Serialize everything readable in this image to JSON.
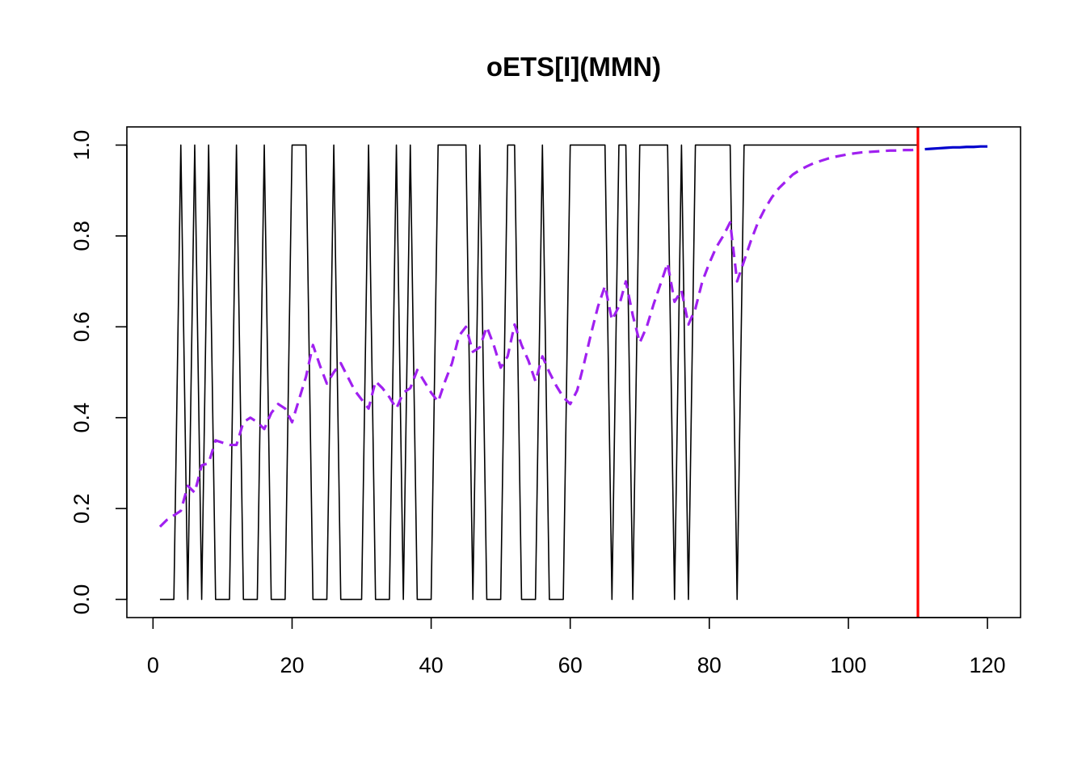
{
  "chart_data": {
    "type": "line",
    "title": "oETS[I](MMN)",
    "xlabel": "",
    "ylabel": "",
    "xlim": [
      -3.76,
      124.76
    ],
    "ylim": [
      -0.04,
      1.04
    ],
    "x_ticks": [
      0,
      20,
      40,
      60,
      80,
      100,
      120
    ],
    "y_ticks": [
      0.0,
      0.2,
      0.4,
      0.6,
      0.8,
      1.0
    ],
    "x_tick_labels": [
      "0",
      "20",
      "40",
      "60",
      "80",
      "100",
      "120"
    ],
    "y_tick_labels": [
      "0.0",
      "0.2",
      "0.4",
      "0.6",
      "0.8",
      "1.0"
    ],
    "grid": false,
    "legend": "none",
    "series": [
      {
        "role": "actuals",
        "color": "#000000",
        "style": "solid",
        "x_start": 1,
        "values": [
          0,
          0,
          0,
          1,
          0,
          1,
          0,
          1,
          0,
          0,
          0,
          1,
          0,
          0,
          0,
          1,
          0,
          0,
          0,
          1,
          1,
          1,
          0,
          0,
          0,
          1,
          0,
          0,
          0,
          0,
          1,
          0,
          0,
          0,
          1,
          0,
          1,
          0,
          0,
          0,
          1,
          1,
          1,
          1,
          1,
          0,
          1,
          0,
          0,
          0,
          1,
          1,
          0,
          0,
          0,
          1,
          0,
          0,
          0,
          1,
          1,
          1,
          1,
          1,
          1,
          0,
          1,
          1,
          0,
          1,
          1,
          1,
          1,
          1,
          0,
          1,
          0,
          1,
          1,
          1,
          1,
          1,
          1,
          0,
          1,
          1,
          1,
          1,
          1,
          1,
          1,
          1,
          1,
          1,
          1,
          1,
          1,
          1,
          1,
          1,
          1,
          1,
          1,
          1,
          1,
          1,
          1,
          1,
          1,
          1
        ]
      },
      {
        "role": "fitted",
        "color": "#a020f0",
        "style": "dashed",
        "x": [
          1,
          2,
          3,
          4,
          5,
          6,
          7,
          8,
          9,
          10,
          11,
          12,
          13,
          14,
          15,
          16,
          17,
          18,
          19,
          20,
          21,
          22,
          23,
          24,
          25,
          26,
          27,
          28,
          29,
          30,
          31,
          32,
          33,
          34,
          35,
          36,
          37,
          38,
          39,
          40,
          41,
          42,
          43,
          44,
          45,
          46,
          47,
          48,
          49,
          50,
          51,
          52,
          53,
          54,
          55,
          56,
          57,
          58,
          59,
          60,
          61,
          62,
          63,
          64,
          65,
          66,
          67,
          68,
          69,
          70,
          71,
          72,
          73,
          74,
          75,
          76,
          77,
          78,
          79,
          80,
          81,
          82,
          83,
          84,
          85,
          86,
          87,
          88,
          89,
          90,
          91,
          92,
          93,
          94,
          95,
          96,
          97,
          98,
          99,
          100,
          101,
          102,
          103,
          104,
          105,
          106,
          107,
          108,
          109,
          110
        ],
        "values": [
          0.16,
          0.175,
          0.185,
          0.195,
          0.25,
          0.235,
          0.295,
          0.3,
          0.35,
          0.345,
          0.34,
          0.34,
          0.39,
          0.4,
          0.39,
          0.375,
          0.41,
          0.43,
          0.42,
          0.39,
          0.44,
          0.49,
          0.56,
          0.515,
          0.475,
          0.5,
          0.52,
          0.49,
          0.46,
          0.44,
          0.42,
          0.48,
          0.465,
          0.445,
          0.42,
          0.455,
          0.465,
          0.505,
          0.48,
          0.455,
          0.435,
          0.48,
          0.52,
          0.58,
          0.6,
          0.545,
          0.555,
          0.6,
          0.56,
          0.51,
          0.535,
          0.605,
          0.56,
          0.525,
          0.48,
          0.535,
          0.5,
          0.47,
          0.445,
          0.43,
          0.46,
          0.52,
          0.585,
          0.645,
          0.69,
          0.615,
          0.645,
          0.7,
          0.625,
          0.565,
          0.6,
          0.65,
          0.695,
          0.74,
          0.655,
          0.68,
          0.605,
          0.64,
          0.7,
          0.74,
          0.775,
          0.8,
          0.83,
          0.7,
          0.745,
          0.79,
          0.83,
          0.86,
          0.885,
          0.905,
          0.92,
          0.935,
          0.945,
          0.953,
          0.96,
          0.965,
          0.97,
          0.974,
          0.977,
          0.98,
          0.982,
          0.984,
          0.985,
          0.986,
          0.987,
          0.988,
          0.988,
          0.989,
          0.989,
          0.99
        ]
      },
      {
        "role": "forecast",
        "color": "#0000cd",
        "style": "solid",
        "x": [
          111,
          112,
          113,
          114,
          115,
          116,
          117,
          118,
          119,
          120
        ],
        "values": [
          0.991,
          0.992,
          0.993,
          0.994,
          0.995,
          0.995,
          0.996,
          0.996,
          0.997,
          0.997
        ]
      }
    ],
    "vline": {
      "x": 110,
      "color": "#ff0000"
    }
  }
}
